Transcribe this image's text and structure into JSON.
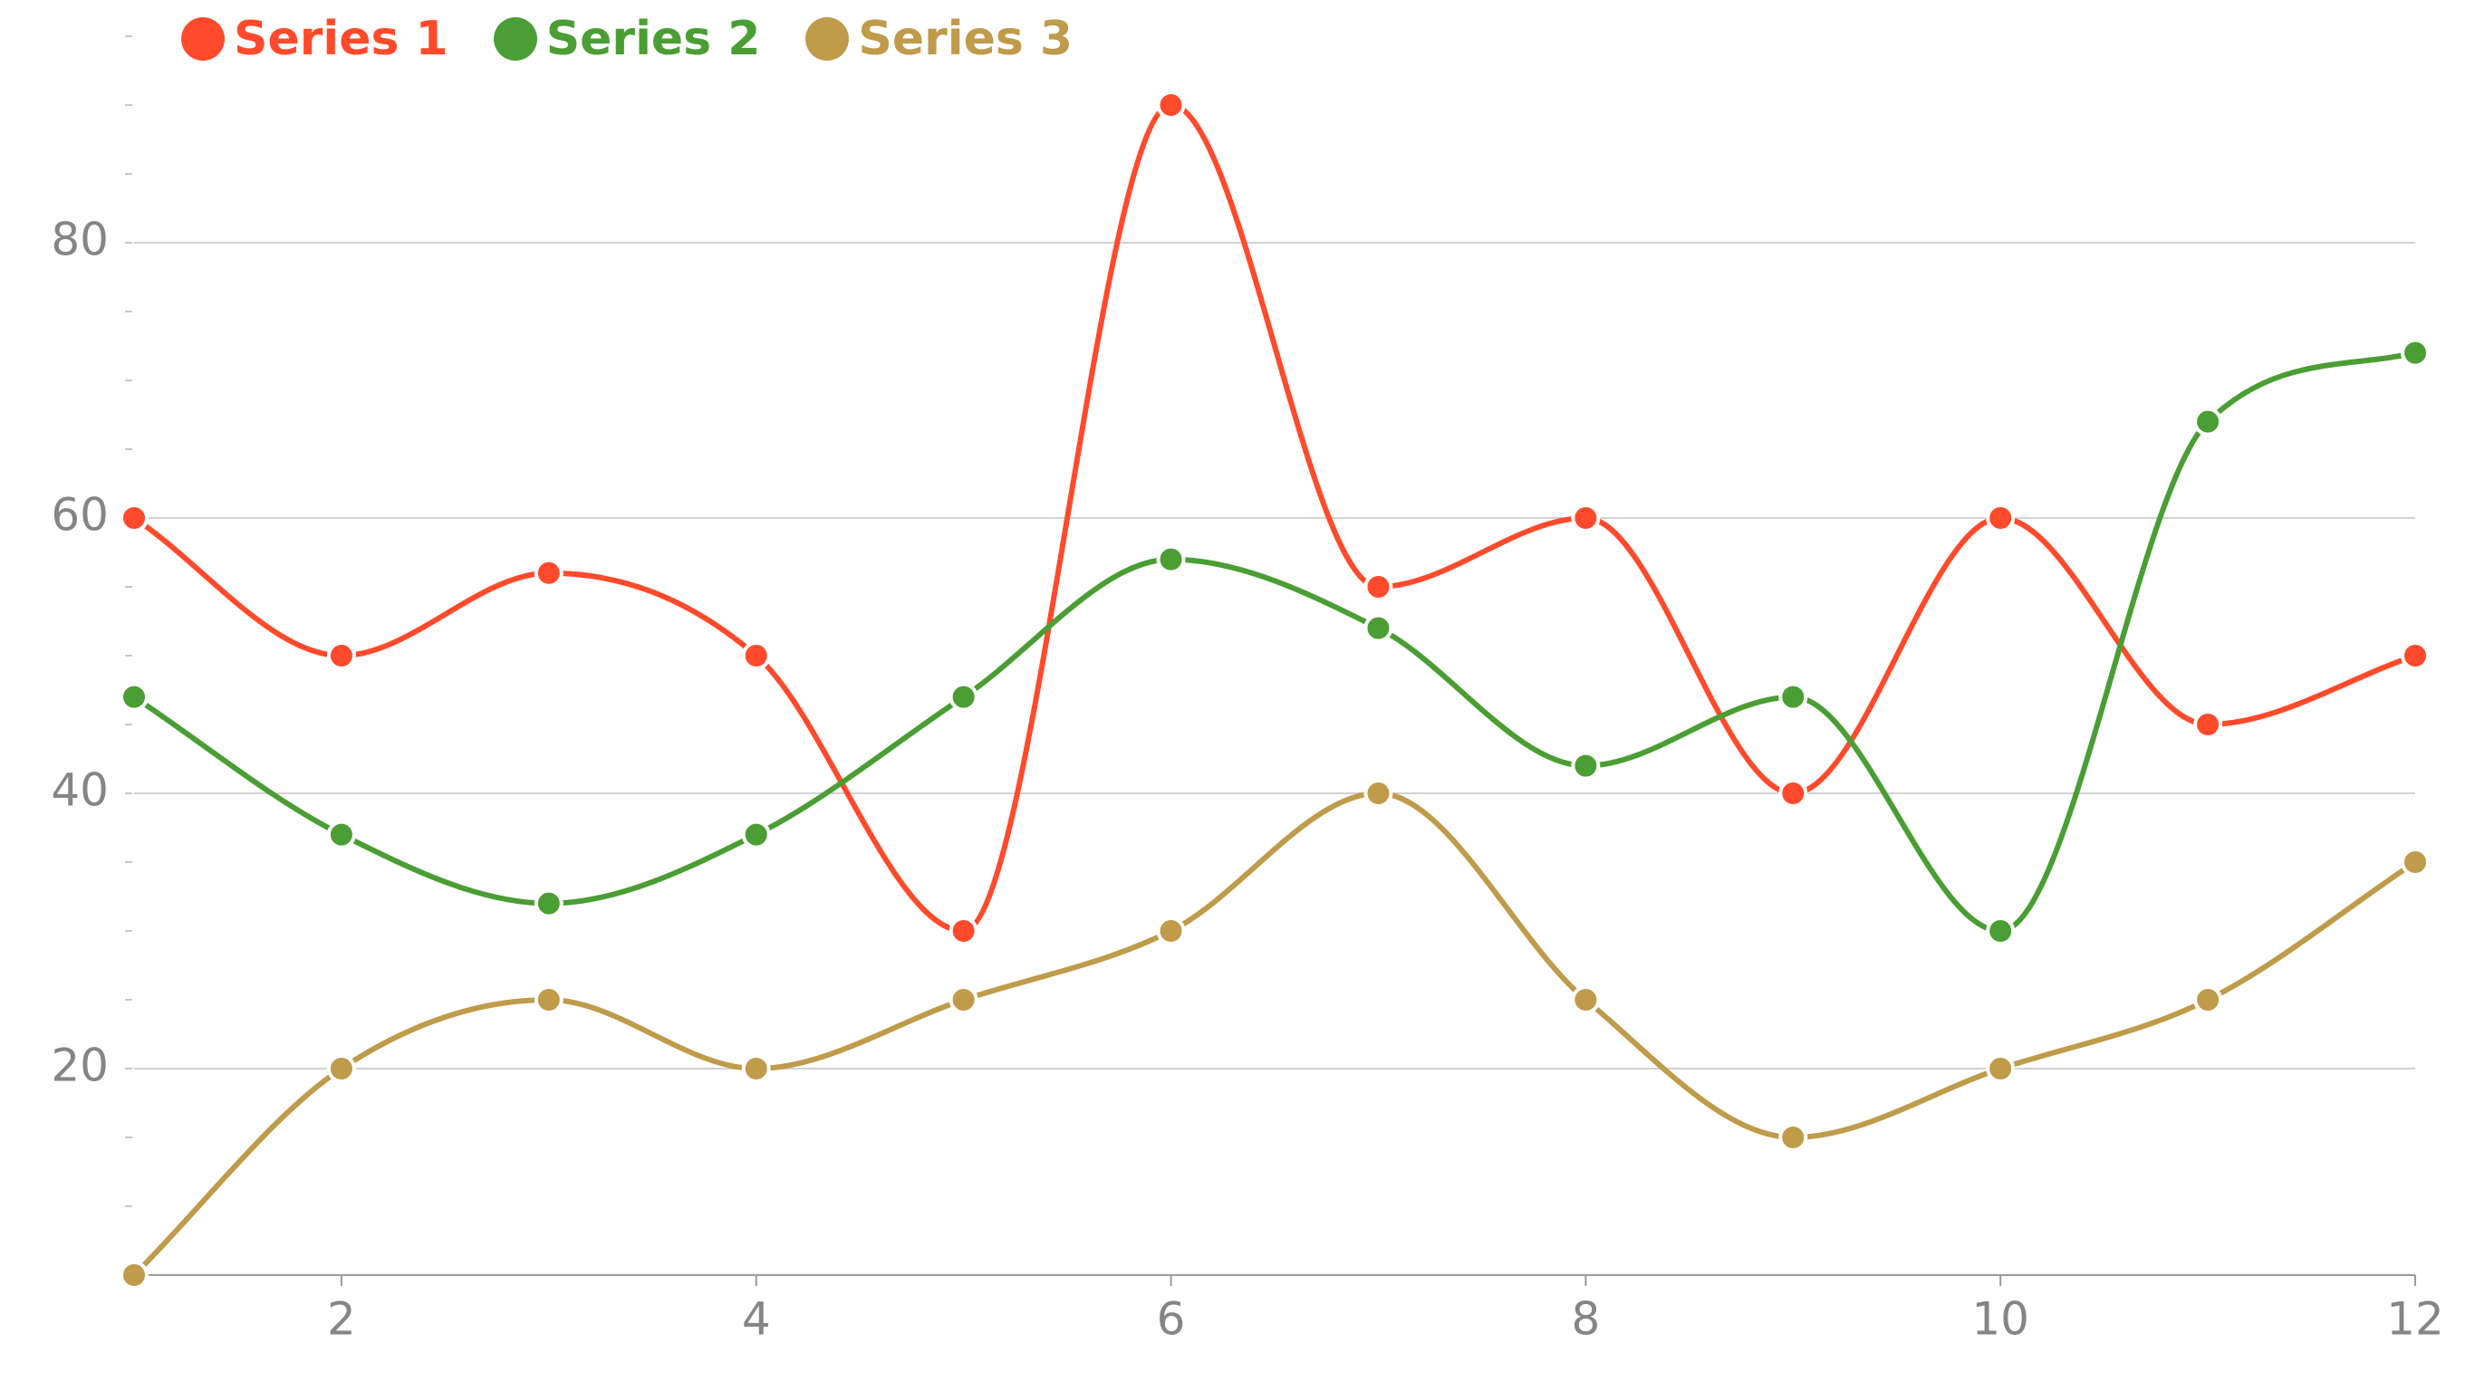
{
  "chart_data": {
    "type": "line",
    "x": [
      1,
      2,
      3,
      4,
      5,
      6,
      7,
      8,
      9,
      10,
      11,
      12
    ],
    "series": [
      {
        "name": "Series 1",
        "color": "#ff4a2b",
        "values": [
          60,
          50,
          56,
          50,
          30,
          90,
          55,
          60,
          40,
          60,
          45,
          50
        ]
      },
      {
        "name": "Series 2",
        "color": "#4a9e33",
        "values": [
          47,
          37,
          32,
          37,
          47,
          57,
          52,
          42,
          47,
          30,
          67,
          72
        ]
      },
      {
        "name": "Series 3",
        "color": "#bf9b4a",
        "values": [
          5,
          20,
          25,
          20,
          25,
          30,
          40,
          25,
          15,
          20,
          25,
          35
        ]
      }
    ],
    "xlim": [
      1,
      12
    ],
    "ylim": [
      5,
      95
    ],
    "x_ticks": [
      2,
      4,
      6,
      8,
      10,
      12
    ],
    "y_ticks": [
      20,
      40,
      60,
      80
    ],
    "y_minor_step": 5,
    "grid": true,
    "legend_position": "top-left",
    "title": "",
    "xlabel": "",
    "ylabel": ""
  }
}
